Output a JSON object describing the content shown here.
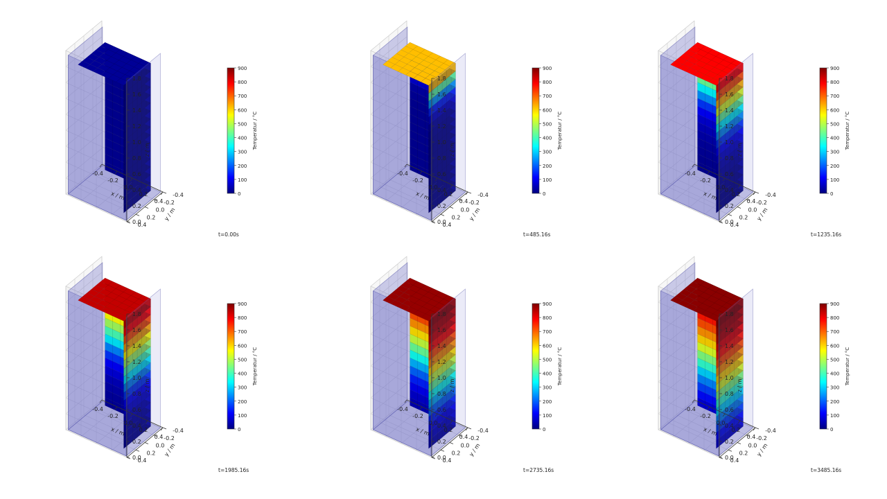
{
  "colormap": {
    "name": "jet",
    "min": 0,
    "max": 900,
    "stops": [
      "#00007f",
      "#0000ff",
      "#007fff",
      "#00ffff",
      "#7fff7f",
      "#ffff00",
      "#ff7f00",
      "#ff0000",
      "#7f0000"
    ]
  },
  "colorbar": {
    "label": "Temperatur / °C",
    "ticks": [
      "0",
      "100",
      "200",
      "300",
      "400",
      "500",
      "600",
      "700",
      "800",
      "900"
    ]
  },
  "axes": {
    "xlabel": "x / m",
    "ylabel": "y / m",
    "zlabel": "z / m",
    "x_ticks": [
      "-0.4",
      "-0.2",
      "0.0",
      "0.2",
      "0.4"
    ],
    "y_ticks": [
      "-0.4",
      "-0.2",
      "0.0",
      "0.2",
      "0.4"
    ],
    "z_ticks": [
      "0.0",
      "0.2",
      "0.4",
      "0.6",
      "0.8",
      "1.0",
      "1.2",
      "1.4",
      "1.6",
      "1.8"
    ],
    "xlim": [
      -0.4,
      0.4
    ],
    "ylim": [
      -0.4,
      0.4
    ],
    "zlim": [
      0.0,
      1.8
    ],
    "grid": true
  },
  "chart_data": [
    {
      "type": "heatmap",
      "time_label": "t=0.00s",
      "z_layers": [
        "0.05",
        "0.15",
        "0.25",
        "0.35",
        "0.45",
        "0.55",
        "0.65",
        "0.75",
        "0.85",
        "0.95",
        "1.05",
        "1.15",
        "1.25",
        "1.35",
        "1.45",
        "1.55"
      ],
      "values": [
        20,
        20,
        20,
        20,
        20,
        20,
        20,
        20,
        20,
        20,
        20,
        20,
        20,
        20,
        20,
        20
      ]
    },
    {
      "type": "heatmap",
      "time_label": "t=485.16s",
      "z_layers": [
        "0.05",
        "0.15",
        "0.25",
        "0.35",
        "0.45",
        "0.55",
        "0.65",
        "0.75",
        "0.85",
        "0.95",
        "1.05",
        "1.15",
        "1.25",
        "1.35",
        "1.45",
        "1.55"
      ],
      "values": [
        20,
        20,
        20,
        20,
        20,
        20,
        20,
        20,
        20,
        25,
        35,
        70,
        140,
        250,
        420,
        620
      ]
    },
    {
      "type": "heatmap",
      "time_label": "t=1235.16s",
      "z_layers": [
        "0.05",
        "0.15",
        "0.25",
        "0.35",
        "0.45",
        "0.55",
        "0.65",
        "0.75",
        "0.85",
        "0.95",
        "1.05",
        "1.15",
        "1.25",
        "1.35",
        "1.45",
        "1.55"
      ],
      "values": [
        20,
        20,
        25,
        30,
        40,
        55,
        75,
        110,
        160,
        240,
        330,
        430,
        530,
        630,
        720,
        790
      ]
    },
    {
      "type": "heatmap",
      "time_label": "t=1985.16s",
      "z_layers": [
        "0.05",
        "0.15",
        "0.25",
        "0.35",
        "0.45",
        "0.55",
        "0.65",
        "0.75",
        "0.85",
        "0.95",
        "1.05",
        "1.15",
        "1.25",
        "1.35",
        "1.45",
        "1.55"
      ],
      "values": [
        25,
        30,
        40,
        55,
        80,
        110,
        160,
        230,
        320,
        400,
        480,
        560,
        640,
        720,
        790,
        840
      ]
    },
    {
      "type": "heatmap",
      "time_label": "t=2735.16s",
      "z_layers": [
        "0.05",
        "0.15",
        "0.25",
        "0.35",
        "0.45",
        "0.55",
        "0.65",
        "0.75",
        "0.85",
        "0.95",
        "1.05",
        "1.15",
        "1.25",
        "1.35",
        "1.45",
        "1.55"
      ],
      "values": [
        50,
        70,
        100,
        140,
        200,
        270,
        350,
        430,
        510,
        590,
        660,
        720,
        780,
        830,
        860,
        880
      ]
    },
    {
      "type": "heatmap",
      "time_label": "t=3485.16s",
      "z_layers": [
        "0.05",
        "0.15",
        "0.25",
        "0.35",
        "0.45",
        "0.55",
        "0.65",
        "0.75",
        "0.85",
        "0.95",
        "1.05",
        "1.15",
        "1.25",
        "1.35",
        "1.45",
        "1.55"
      ],
      "values": [
        80,
        120,
        170,
        230,
        300,
        380,
        450,
        530,
        600,
        660,
        720,
        770,
        810,
        850,
        870,
        890
      ]
    }
  ]
}
